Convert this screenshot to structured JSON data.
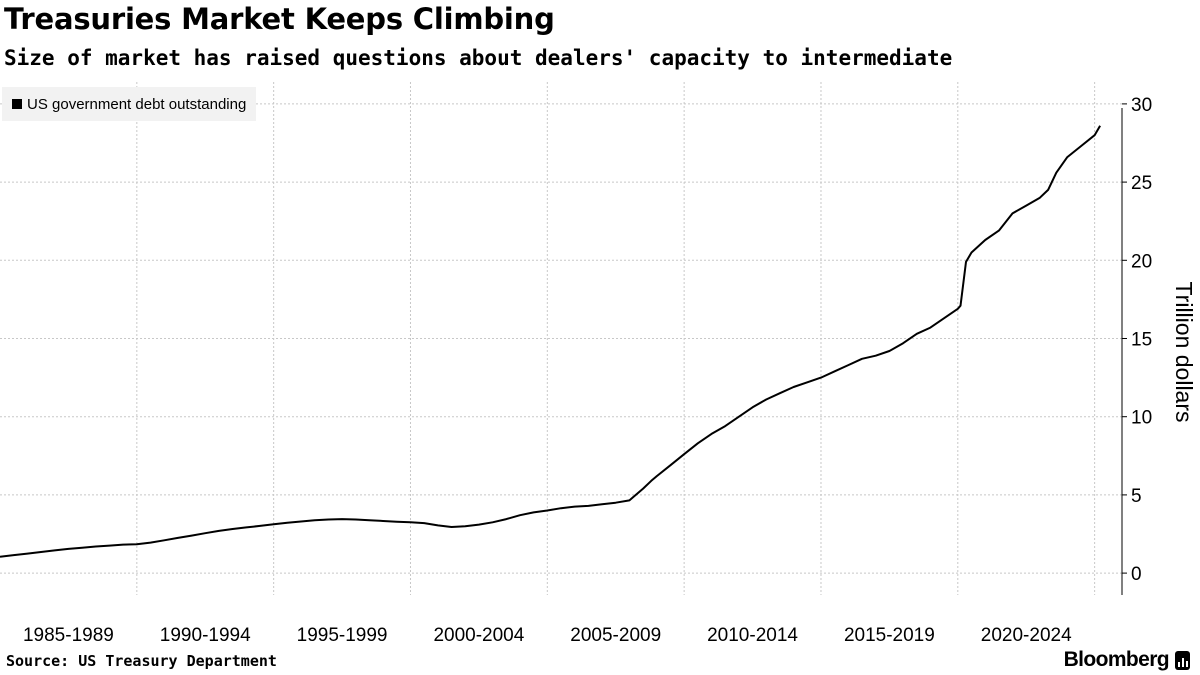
{
  "chart_data": {
    "type": "line",
    "title": "Treasuries Market Keeps Climbing",
    "subtitle": "Size of market has raised questions about dealers' capacity to intermediate",
    "ylabel": "Trillion dollars",
    "ylim": [
      -1.4,
      31.4
    ],
    "xlim": [
      1985.0,
      2026.0
    ],
    "yticks": [
      0,
      5,
      10,
      15,
      20,
      25,
      30
    ],
    "xcategories": [
      "1985-1989",
      "1990-1994",
      "1995-1999",
      "2000-2004",
      "2005-2009",
      "2010-2014",
      "2015-2019",
      "2020-2024"
    ],
    "grid": true,
    "legend_position": "top-left",
    "series": [
      {
        "name": "US government debt outstanding",
        "color": "#000000",
        "points": [
          [
            1985.0,
            1.05
          ],
          [
            1985.5,
            1.15
          ],
          [
            1986.0,
            1.25
          ],
          [
            1986.5,
            1.35
          ],
          [
            1987.0,
            1.45
          ],
          [
            1987.5,
            1.55
          ],
          [
            1988.0,
            1.62
          ],
          [
            1988.5,
            1.7
          ],
          [
            1989.0,
            1.76
          ],
          [
            1989.5,
            1.82
          ],
          [
            1990.0,
            1.85
          ],
          [
            1990.5,
            1.95
          ],
          [
            1991.0,
            2.1
          ],
          [
            1991.5,
            2.25
          ],
          [
            1992.0,
            2.4
          ],
          [
            1992.5,
            2.55
          ],
          [
            1993.0,
            2.7
          ],
          [
            1993.5,
            2.82
          ],
          [
            1994.0,
            2.92
          ],
          [
            1994.5,
            3.02
          ],
          [
            1995.0,
            3.12
          ],
          [
            1995.5,
            3.22
          ],
          [
            1996.0,
            3.3
          ],
          [
            1996.5,
            3.38
          ],
          [
            1997.0,
            3.43
          ],
          [
            1997.5,
            3.45
          ],
          [
            1998.0,
            3.43
          ],
          [
            1998.5,
            3.38
          ],
          [
            1999.0,
            3.33
          ],
          [
            1999.5,
            3.28
          ],
          [
            2000.0,
            3.25
          ],
          [
            2000.5,
            3.2
          ],
          [
            2001.0,
            3.05
          ],
          [
            2001.5,
            2.95
          ],
          [
            2002.0,
            3.0
          ],
          [
            2002.5,
            3.1
          ],
          [
            2003.0,
            3.25
          ],
          [
            2003.5,
            3.45
          ],
          [
            2004.0,
            3.7
          ],
          [
            2004.5,
            3.88
          ],
          [
            2005.0,
            4.0
          ],
          [
            2005.5,
            4.15
          ],
          [
            2006.0,
            4.25
          ],
          [
            2006.5,
            4.3
          ],
          [
            2007.0,
            4.4
          ],
          [
            2007.5,
            4.5
          ],
          [
            2008.0,
            4.65
          ],
          [
            2008.5,
            5.4
          ],
          [
            2008.8,
            5.9
          ],
          [
            2009.0,
            6.2
          ],
          [
            2009.5,
            6.9
          ],
          [
            2010.0,
            7.6
          ],
          [
            2010.5,
            8.3
          ],
          [
            2011.0,
            8.9
          ],
          [
            2011.5,
            9.4
          ],
          [
            2012.0,
            10.0
          ],
          [
            2012.5,
            10.6
          ],
          [
            2013.0,
            11.1
          ],
          [
            2013.5,
            11.5
          ],
          [
            2014.0,
            11.9
          ],
          [
            2014.5,
            12.2
          ],
          [
            2015.0,
            12.5
          ],
          [
            2015.5,
            12.9
          ],
          [
            2016.0,
            13.3
          ],
          [
            2016.5,
            13.7
          ],
          [
            2017.0,
            13.9
          ],
          [
            2017.5,
            14.2
          ],
          [
            2018.0,
            14.7
          ],
          [
            2018.5,
            15.3
          ],
          [
            2019.0,
            15.7
          ],
          [
            2019.5,
            16.3
          ],
          [
            2020.0,
            16.9
          ],
          [
            2020.1,
            17.1
          ],
          [
            2020.3,
            19.9
          ],
          [
            2020.5,
            20.5
          ],
          [
            2021.0,
            21.3
          ],
          [
            2021.5,
            21.9
          ],
          [
            2022.0,
            23.0
          ],
          [
            2022.5,
            23.5
          ],
          [
            2023.0,
            24.0
          ],
          [
            2023.3,
            24.5
          ],
          [
            2023.6,
            25.6
          ],
          [
            2024.0,
            26.6
          ],
          [
            2024.5,
            27.3
          ],
          [
            2025.0,
            28.0
          ],
          [
            2025.2,
            28.6
          ]
        ]
      }
    ]
  },
  "footer": {
    "source": "Source: US Treasury Department",
    "brand": "Bloomberg"
  }
}
